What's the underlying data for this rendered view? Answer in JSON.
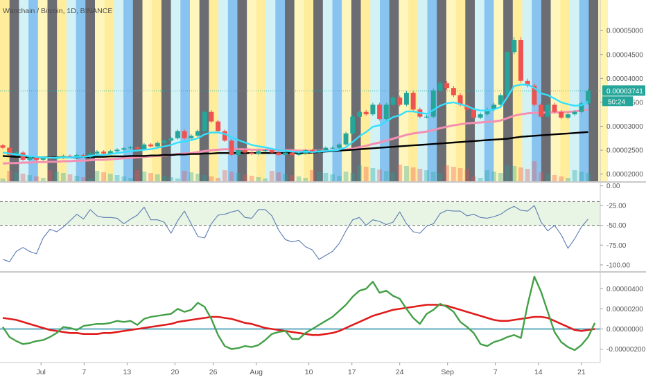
{
  "header": {
    "title": "Wanchain / Bitcoin, 1D, BINANCE"
  },
  "colors": {
    "up": "#26a69a",
    "down": "#ef5350",
    "ma_fast": "#33e0ff",
    "ma_mid": "#f48fb1",
    "ma_slow": "#000000",
    "stoch": "#5b7bb2",
    "osc": "#43a047",
    "signal": "#e01b1b",
    "zero": "#1e88a8",
    "stripes": [
      "#ffe985",
      "#4c4c55",
      "#6fb8ee",
      "#fff5b0",
      "#c8f0f5"
    ]
  },
  "chart_data": [
    {
      "type": "candlestick",
      "title": "Wanchain / Bitcoin, 1D, BINANCE",
      "x_ticks": [
        "Jul",
        "7",
        "13",
        "20",
        "26",
        "Aug",
        "10",
        "17",
        "24",
        "Sep",
        "7",
        "14",
        "21"
      ],
      "y_ticks": [
        "0.00005000",
        "0.00004500",
        "0.00004000",
        "0.00003500",
        "0.00003000",
        "0.00002500",
        "0.00002000"
      ],
      "ylim": [
        1.85e-05,
        5.35e-05
      ],
      "last_price_label": "0.00003741",
      "countdown_label": "50:24",
      "series": {
        "close": [
          2.55e-05,
          2.4e-05,
          2.45e-05,
          2.3e-05,
          2.35e-05,
          2.3e-05,
          2.34e-05,
          2.32e-05,
          2.34e-05,
          2.38e-05,
          2.37e-05,
          2.4e-05,
          2.36e-05,
          2.43e-05,
          2.47e-05,
          2.43e-05,
          2.48e-05,
          2.51e-05,
          2.54e-05,
          2.56e-05,
          2.52e-05,
          2.62e-05,
          2.58e-05,
          2.65e-05,
          2.7e-05,
          2.75e-05,
          2.9e-05,
          2.75e-05,
          2.8e-05,
          2.9e-05,
          3.3e-05,
          3.1e-05,
          2.9e-05,
          2.7e-05,
          2.4e-05,
          2.5e-05,
          2.45e-05,
          2.42e-05,
          2.48e-05,
          2.5e-05,
          2.45e-05,
          2.4e-05,
          2.45e-05,
          2.4e-05,
          2.43e-05,
          2.5e-05,
          2.45e-05,
          2.5e-05,
          2.55e-05,
          2.55e-05,
          2.62e-05,
          2.85e-05,
          3.2e-05,
          3.3e-05,
          3.25e-05,
          3.45e-05,
          3.15e-05,
          3.45e-05,
          3.6e-05,
          3.45e-05,
          3.7e-05,
          3.35e-05,
          3.2e-05,
          3.2e-05,
          3.75e-05,
          3.9e-05,
          3.8e-05,
          3.65e-05,
          3.45e-05,
          3.35e-05,
          3.18e-05,
          3.25e-05,
          3.35e-05,
          3.45e-05,
          3.65e-05,
          4.55e-05,
          4.8e-05,
          3.95e-05,
          3.85e-05,
          3.45e-05,
          3.2e-05,
          3.45e-05,
          3.3e-05,
          3.18e-05,
          3.25e-05,
          3.3e-05,
          3.48e-05,
          3.74e-05
        ],
        "ma_fast": [
          2.45e-05,
          2.43e-05,
          2.41e-05,
          2.39e-05,
          2.37e-05,
          2.36e-05,
          2.35e-05,
          2.34e-05,
          2.34e-05,
          2.35e-05,
          2.35e-05,
          2.36e-05,
          2.36e-05,
          2.38e-05,
          2.4e-05,
          2.4e-05,
          2.42e-05,
          2.44e-05,
          2.46e-05,
          2.48e-05,
          2.49e-05,
          2.51e-05,
          2.52e-05,
          2.55e-05,
          2.58e-05,
          2.61e-05,
          2.66e-05,
          2.68e-05,
          2.71e-05,
          2.75e-05,
          2.83e-05,
          2.87e-05,
          2.87e-05,
          2.84e-05,
          2.77e-05,
          2.71e-05,
          2.66e-05,
          2.61e-05,
          2.58e-05,
          2.56e-05,
          2.53e-05,
          2.5e-05,
          2.49e-05,
          2.47e-05,
          2.46e-05,
          2.47e-05,
          2.46e-05,
          2.47e-05,
          2.48e-05,
          2.49e-05,
          2.51e-05,
          2.56e-05,
          2.67e-05,
          2.79e-05,
          2.88e-05,
          2.99e-05,
          3.02e-05,
          3.1e-05,
          3.19e-05,
          3.23e-05,
          3.31e-05,
          3.31e-05,
          3.28e-05,
          3.26e-05,
          3.34e-05,
          3.43e-05,
          3.48e-05,
          3.5e-05,
          3.46e-05,
          3.42e-05,
          3.36e-05,
          3.33e-05,
          3.33e-05,
          3.35e-05,
          3.4e-05,
          3.61e-05,
          3.84e-05,
          3.87e-05,
          3.87e-05,
          3.8e-05,
          3.69e-05,
          3.65e-05,
          3.58e-05,
          3.5e-05,
          3.46e-05,
          3.43e-05,
          3.44e-05,
          3.52e-05
        ],
        "ma_mid": [
          2.22e-05,
          2.23e-05,
          2.23e-05,
          2.24e-05,
          2.24e-05,
          2.25e-05,
          2.25e-05,
          2.26e-05,
          2.26e-05,
          2.27e-05,
          2.27e-05,
          2.28e-05,
          2.28e-05,
          2.29e-05,
          2.3e-05,
          2.3e-05,
          2.31e-05,
          2.32e-05,
          2.33e-05,
          2.34e-05,
          2.35e-05,
          2.36e-05,
          2.37e-05,
          2.38e-05,
          2.39e-05,
          2.4e-05,
          2.42e-05,
          2.43e-05,
          2.44e-05,
          2.46e-05,
          2.48e-05,
          2.5e-05,
          2.51e-05,
          2.52e-05,
          2.52e-05,
          2.52e-05,
          2.52e-05,
          2.51e-05,
          2.51e-05,
          2.51e-05,
          2.51e-05,
          2.5e-05,
          2.5e-05,
          2.5e-05,
          2.49e-05,
          2.49e-05,
          2.49e-05,
          2.49e-05,
          2.49e-05,
          2.49e-05,
          2.5e-05,
          2.51e-05,
          2.53e-05,
          2.56e-05,
          2.59e-05,
          2.63e-05,
          2.66e-05,
          2.7e-05,
          2.74e-05,
          2.78e-05,
          2.82e-05,
          2.85e-05,
          2.87e-05,
          2.89e-05,
          2.92e-05,
          2.96e-05,
          2.99e-05,
          3.02e-05,
          3.04e-05,
          3.06e-05,
          3.07e-05,
          3.08e-05,
          3.09e-05,
          3.1e-05,
          3.12e-05,
          3.17e-05,
          3.22e-05,
          3.25e-05,
          3.27e-05,
          3.28e-05,
          3.28e-05,
          3.29e-05,
          3.29e-05,
          3.29e-05,
          3.3e-05,
          3.31e-05,
          3.33e-05,
          3.35e-05
        ],
        "ma_slow": [
          2.38e-05,
          2.37e-05,
          2.36e-05,
          2.36e-05,
          2.35e-05,
          2.35e-05,
          2.35e-05,
          2.35e-05,
          2.35e-05,
          2.35e-05,
          2.35e-05,
          2.35e-05,
          2.36e-05,
          2.36e-05,
          2.36e-05,
          2.36e-05,
          2.37e-05,
          2.37e-05,
          2.37e-05,
          2.38e-05,
          2.38e-05,
          2.38e-05,
          2.39e-05,
          2.39e-05,
          2.4e-05,
          2.4e-05,
          2.41e-05,
          2.41e-05,
          2.42e-05,
          2.42e-05,
          2.43e-05,
          2.43e-05,
          2.44e-05,
          2.44e-05,
          2.44e-05,
          2.44e-05,
          2.44e-05,
          2.44e-05,
          2.44e-05,
          2.44e-05,
          2.44e-05,
          2.44e-05,
          2.44e-05,
          2.44e-05,
          2.44e-05,
          2.44e-05,
          2.45e-05,
          2.46e-05,
          2.47e-05,
          2.48e-05,
          2.49e-05,
          2.5e-05,
          2.51e-05,
          2.52e-05,
          2.53e-05,
          2.54e-05,
          2.55e-05,
          2.56e-05,
          2.57e-05,
          2.58e-05,
          2.59e-05,
          2.6e-05,
          2.61e-05,
          2.62e-05,
          2.63e-05,
          2.64e-05,
          2.65e-05,
          2.66e-05,
          2.67e-05,
          2.68e-05,
          2.69e-05,
          2.7e-05,
          2.71e-05,
          2.72e-05,
          2.73e-05,
          2.74e-05,
          2.76e-05,
          2.78e-05,
          2.79e-05,
          2.8e-05,
          2.81e-05,
          2.82e-05,
          2.83e-05,
          2.84e-05,
          2.85e-05,
          2.86e-05,
          2.87e-05,
          2.88e-05
        ]
      }
    },
    {
      "type": "line",
      "y_ticks": [
        "0.00",
        "-25.00",
        "-50.00",
        "-75.00",
        "-100.00"
      ],
      "ylim": [
        -108,
        4
      ],
      "band": [
        -20,
        -50
      ],
      "values": [
        -93,
        -96,
        -83,
        -78,
        -83,
        -86,
        -66,
        -55,
        -58,
        -52,
        -44,
        -36,
        -42,
        -30,
        -38,
        -40,
        -40,
        -41,
        -48,
        -42,
        -37,
        -27,
        -43,
        -43,
        -46,
        -60,
        -44,
        -32,
        -48,
        -64,
        -66,
        -48,
        -37,
        -36,
        -33,
        -31,
        -40,
        -41,
        -30,
        -30,
        -38,
        -56,
        -68,
        -71,
        -69,
        -77,
        -81,
        -93,
        -88,
        -83,
        -73,
        -57,
        -43,
        -40,
        -50,
        -43,
        -45,
        -49,
        -46,
        -33,
        -48,
        -58,
        -60,
        -51,
        -48,
        -35,
        -31,
        -32,
        -32,
        -38,
        -36,
        -40,
        -41,
        -39,
        -36,
        -30,
        -26,
        -31,
        -32,
        -25,
        -46,
        -57,
        -50,
        -62,
        -79,
        -67,
        -52,
        -42
      ]
    },
    {
      "type": "line",
      "y_ticks": [
        "0.00000400",
        "0.00000200",
        "0.00000000",
        "-0.00000200"
      ],
      "ylim": [
        -3.2e-06,
        5.6e-06
      ],
      "series": [
        {
          "values": [
            2e-07,
            -8e-07,
            -1.2e-06,
            -1.5e-06,
            -1.4e-06,
            -1.2e-06,
            -1.1e-06,
            -8e-07,
            -4e-07,
            2e-07,
            1e-07,
            -1e-07,
            3e-07,
            4e-07,
            5e-07,
            5e-07,
            6e-07,
            8e-07,
            7e-07,
            8e-07,
            4e-07,
            1e-06,
            1.2e-06,
            1.3e-06,
            1.4e-06,
            1.5e-06,
            2e-06,
            1.7e-06,
            1.9e-06,
            2.6e-06,
            2.2e-06,
            1e-06,
            -6e-07,
            -1.7e-06,
            -2e-06,
            -1.9e-06,
            -1.7e-06,
            -1.8e-06,
            -1.6e-06,
            -1.1e-06,
            -5e-07,
            -3e-07,
            -2e-07,
            -1e-06,
            -1e-06,
            -4e-07,
            0.0,
            4e-07,
            8e-07,
            1.2e-06,
            1.8e-06,
            2.4e-06,
            3.2e-06,
            3.8e-06,
            4e-06,
            4.7e-06,
            3.6e-06,
            3.8e-06,
            3.3e-06,
            3e-06,
            2e-06,
            1.1e-06,
            5e-07,
            1.5e-06,
            1.9e-06,
            2.5e-06,
            2.2e-06,
            1.7e-06,
            7e-07,
            2e-07,
            -4e-07,
            -1.5e-06,
            -1.7e-06,
            -1.3e-06,
            -1.1e-06,
            -8e-07,
            -6e-07,
            -9e-07,
            2.4e-06,
            5.2e-06,
            3.7e-06,
            1.7e-06,
            -3e-07,
            -1.3e-06,
            -1.8e-06,
            -2.1e-06,
            -1.6e-06,
            -8e-07,
            6e-07
          ]
        },
        {
          "values": [
            1.1e-06,
            1e-06,
            9e-07,
            7e-07,
            5e-07,
            3e-07,
            1e-07,
            -1e-07,
            -2e-07,
            -3e-07,
            -4e-07,
            -4e-07,
            -5e-07,
            -5e-07,
            -5e-07,
            -4e-07,
            -4e-07,
            -3e-07,
            -2e-07,
            -1e-07,
            0.0,
            1e-07,
            2e-07,
            3e-07,
            4e-07,
            5e-07,
            7e-07,
            8e-07,
            9e-07,
            1e-06,
            1.1e-06,
            1.2e-06,
            1.2e-06,
            1.1e-06,
            1e-06,
            8e-07,
            6e-07,
            5e-07,
            3e-07,
            1e-07,
            0.0,
            -1e-07,
            -2e-07,
            -3e-07,
            -4e-07,
            -5e-07,
            -6e-07,
            -6e-07,
            -5e-07,
            -4e-07,
            -2e-07,
            1e-07,
            4e-07,
            7e-07,
            1e-06,
            1.3e-06,
            1.5e-06,
            1.7e-06,
            1.9e-06,
            2e-06,
            2.1e-06,
            2.2e-06,
            2.3e-06,
            2.4e-06,
            2.4e-06,
            2.4e-06,
            2.3e-06,
            2.1e-06,
            1.9e-06,
            1.7e-06,
            1.5e-06,
            1.3e-06,
            1.1e-06,
            9e-07,
            8e-07,
            8e-07,
            9e-07,
            1e-06,
            1.1e-06,
            1.2e-06,
            1.2e-06,
            1.1e-06,
            8e-07,
            5e-07,
            2e-07,
            -1e-07,
            -2e-07,
            -1e-07,
            0.0
          ]
        }
      ]
    }
  ]
}
